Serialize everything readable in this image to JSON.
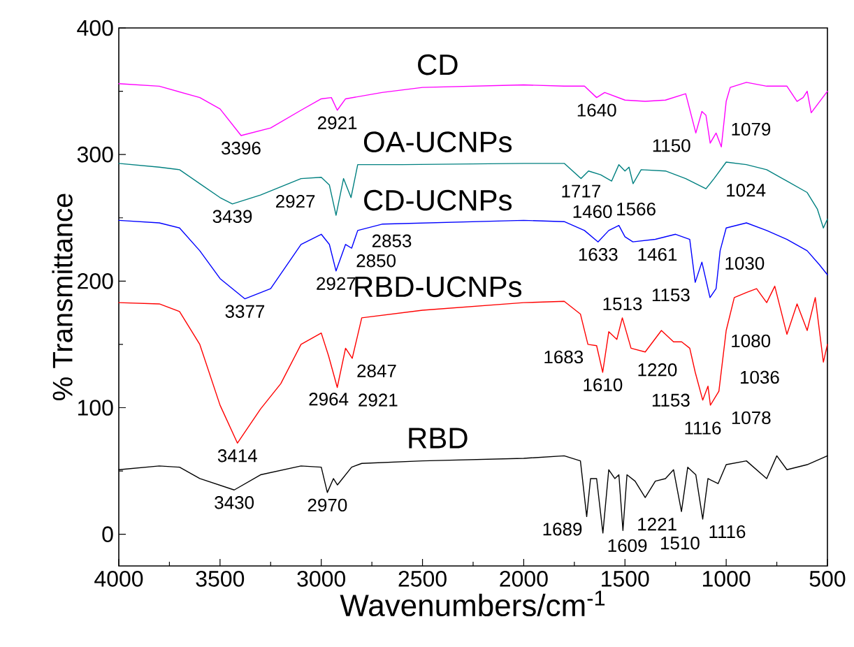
{
  "chart_data": {
    "type": "line",
    "xlabel": "Wavenumbers/cm$^{-1}$",
    "ylabel": "% Transmittance",
    "xlim": [
      4000,
      500
    ],
    "ylim": [
      -25,
      400
    ],
    "xticks": [
      4000,
      3500,
      3000,
      2500,
      2000,
      1500,
      1000,
      500
    ],
    "yticks": [
      0,
      100,
      200,
      300,
      400
    ],
    "grid": false,
    "line_style": "solid",
    "series": [
      {
        "name": "CD",
        "color": "#ff00ff",
        "x": [
          4000,
          3800,
          3600,
          3500,
          3396,
          3250,
          3100,
          3000,
          2950,
          2921,
          2880,
          2700,
          2500,
          2000,
          1800,
          1700,
          1640,
          1600,
          1500,
          1400,
          1300,
          1200,
          1150,
          1120,
          1100,
          1079,
          1050,
          1024,
          1000,
          980,
          900,
          800,
          700,
          650,
          620,
          600,
          580,
          500
        ],
        "values": [
          356,
          354,
          345,
          336,
          315,
          321,
          335,
          344,
          345,
          335,
          344,
          349,
          353,
          355,
          354,
          354,
          345,
          349,
          343,
          342,
          343,
          348,
          317,
          334,
          331,
          309,
          317,
          306,
          342,
          353,
          357,
          354,
          354,
          342,
          345,
          350,
          333,
          350
        ]
      },
      {
        "name": "OA-UCNPs",
        "color": "#008080",
        "x": [
          4000,
          3800,
          3700,
          3600,
          3500,
          3439,
          3300,
          3100,
          3000,
          2960,
          2927,
          2890,
          2853,
          2820,
          2600,
          2000,
          1800,
          1717,
          1680,
          1620,
          1566,
          1530,
          1500,
          1480,
          1460,
          1420,
          1300,
          1200,
          1100,
          1060,
          1000,
          900,
          800,
          700,
          600,
          550,
          520,
          500
        ],
        "values": [
          293,
          290,
          288,
          277,
          266,
          261,
          268,
          281,
          282,
          276,
          252,
          281,
          266,
          292,
          292,
          293,
          293,
          281,
          287,
          284,
          279,
          292,
          287,
          290,
          277,
          288,
          287,
          281,
          273,
          281,
          294,
          292,
          288,
          279,
          270,
          257,
          242,
          249
        ]
      },
      {
        "name": "CD-UCNPs",
        "color": "#0000ff",
        "x": [
          4000,
          3800,
          3700,
          3600,
          3500,
          3377,
          3250,
          3100,
          3000,
          2960,
          2927,
          2880,
          2850,
          2820,
          2700,
          2000,
          1800,
          1700,
          1633,
          1580,
          1530,
          1500,
          1461,
          1350,
          1250,
          1180,
          1153,
          1120,
          1080,
          1050,
          1030,
          1000,
          900,
          800,
          700,
          600,
          540,
          500
        ],
        "values": [
          248,
          246,
          242,
          224,
          202,
          186,
          194,
          229,
          237,
          229,
          208,
          229,
          226,
          240,
          245,
          248,
          247,
          240,
          231,
          240,
          244,
          235,
          231,
          233,
          237,
          233,
          199,
          215,
          187,
          194,
          224,
          242,
          246,
          240,
          233,
          224,
          213,
          205
        ]
      },
      {
        "name": "RBD-UCNPs",
        "color": "#ff0000",
        "x": [
          4000,
          3800,
          3700,
          3600,
          3500,
          3414,
          3300,
          3200,
          3100,
          3000,
          2964,
          2921,
          2880,
          2847,
          2800,
          2500,
          2000,
          1800,
          1720,
          1683,
          1640,
          1610,
          1580,
          1540,
          1513,
          1470,
          1400,
          1320,
          1260,
          1220,
          1180,
          1153,
          1116,
          1090,
          1078,
          1036,
          1000,
          960,
          900,
          850,
          800,
          760,
          700,
          650,
          600,
          560,
          520,
          500
        ],
        "values": [
          183,
          182,
          176,
          150,
          102,
          72,
          99,
          119,
          150,
          159,
          141,
          116,
          147,
          139,
          171,
          177,
          183,
          184,
          174,
          150,
          149,
          128,
          160,
          154,
          171,
          147,
          144,
          161,
          152,
          152,
          147,
          128,
          106,
          117,
          102,
          113,
          161,
          187,
          191,
          194,
          183,
          196,
          158,
          182,
          161,
          187,
          136,
          150
        ]
      },
      {
        "name": "RBD",
        "color": "#000000",
        "x": [
          4000,
          3800,
          3700,
          3600,
          3430,
          3300,
          3100,
          3000,
          2970,
          2940,
          2920,
          2850,
          2800,
          2500,
          2000,
          1800,
          1720,
          1689,
          1670,
          1640,
          1609,
          1580,
          1550,
          1530,
          1510,
          1490,
          1450,
          1400,
          1350,
          1300,
          1260,
          1221,
          1190,
          1150,
          1116,
          1090,
          1040,
          1000,
          900,
          800,
          750,
          700,
          600,
          500
        ],
        "values": [
          51,
          54,
          53,
          44,
          35,
          47,
          54,
          53,
          33,
          44,
          39,
          53,
          56,
          58,
          60,
          62,
          58,
          14,
          44,
          44,
          1,
          51,
          44,
          47,
          3,
          47,
          42,
          29,
          42,
          44,
          51,
          18,
          53,
          47,
          12,
          44,
          40,
          55,
          58,
          44,
          62,
          51,
          55,
          62
        ]
      }
    ],
    "annotations": [
      {
        "text": "3396",
        "x": 3396,
        "y": 315
      },
      {
        "text": "2921",
        "x": 2921,
        "y": 335
      },
      {
        "text": "1640",
        "x": 1640,
        "y": 345
      },
      {
        "text": "1150",
        "x": 1150,
        "y": 317
      },
      {
        "text": "1079",
        "x": 1079,
        "y": 309
      },
      {
        "text": "1024",
        "x": 1024,
        "y": 306
      },
      {
        "text": "3439",
        "x": 3439,
        "y": 261
      },
      {
        "text": "2927",
        "x": 2927,
        "y": 252
      },
      {
        "text": "2853",
        "x": 2853,
        "y": 266
      },
      {
        "text": "1717",
        "x": 1717,
        "y": 281
      },
      {
        "text": "1566",
        "x": 1566,
        "y": 279
      },
      {
        "text": "1460",
        "x": 1460,
        "y": 277
      },
      {
        "text": "3377",
        "x": 3377,
        "y": 186
      },
      {
        "text": "2927",
        "x": 2927,
        "y": 208
      },
      {
        "text": "2850",
        "x": 2850,
        "y": 226
      },
      {
        "text": "1633",
        "x": 1633,
        "y": 231
      },
      {
        "text": "1461",
        "x": 1461,
        "y": 231
      },
      {
        "text": "1153",
        "x": 1153,
        "y": 199
      },
      {
        "text": "1080",
        "x": 1080,
        "y": 187
      },
      {
        "text": "1030",
        "x": 1030,
        "y": 224
      },
      {
        "text": "3414",
        "x": 3414,
        "y": 72
      },
      {
        "text": "2964",
        "x": 2964,
        "y": 141
      },
      {
        "text": "2921",
        "x": 2921,
        "y": 116
      },
      {
        "text": "2847",
        "x": 2847,
        "y": 139
      },
      {
        "text": "1683",
        "x": 1683,
        "y": 150
      },
      {
        "text": "1610",
        "x": 1610,
        "y": 128
      },
      {
        "text": "1513",
        "x": 1513,
        "y": 171
      },
      {
        "text": "1220",
        "x": 1220,
        "y": 152
      },
      {
        "text": "1153",
        "x": 1153,
        "y": 128
      },
      {
        "text": "1116",
        "x": 1116,
        "y": 106
      },
      {
        "text": "1078",
        "x": 1078,
        "y": 102
      },
      {
        "text": "1036",
        "x": 1036,
        "y": 113
      },
      {
        "text": "3430",
        "x": 3430,
        "y": 35
      },
      {
        "text": "2970",
        "x": 2970,
        "y": 33
      },
      {
        "text": "1689",
        "x": 1689,
        "y": 14
      },
      {
        "text": "1609",
        "x": 1609,
        "y": 1
      },
      {
        "text": "1510",
        "x": 1510,
        "y": 3
      },
      {
        "text": "1221",
        "x": 1221,
        "y": 18
      },
      {
        "text": "1116",
        "x": 1116,
        "y": 12
      }
    ]
  }
}
